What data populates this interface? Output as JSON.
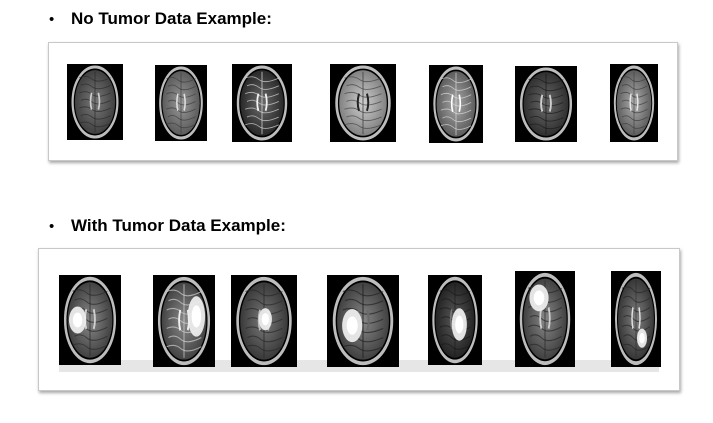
{
  "sections": [
    {
      "bullet": "•",
      "title": "No Tumor Data Example:"
    },
    {
      "bullet": "•",
      "title": "With Tumor Data Example:"
    }
  ],
  "colors": {
    "tumor": "#e8e8e8",
    "background": "#ffffff",
    "scan_bg": "#000000"
  }
}
